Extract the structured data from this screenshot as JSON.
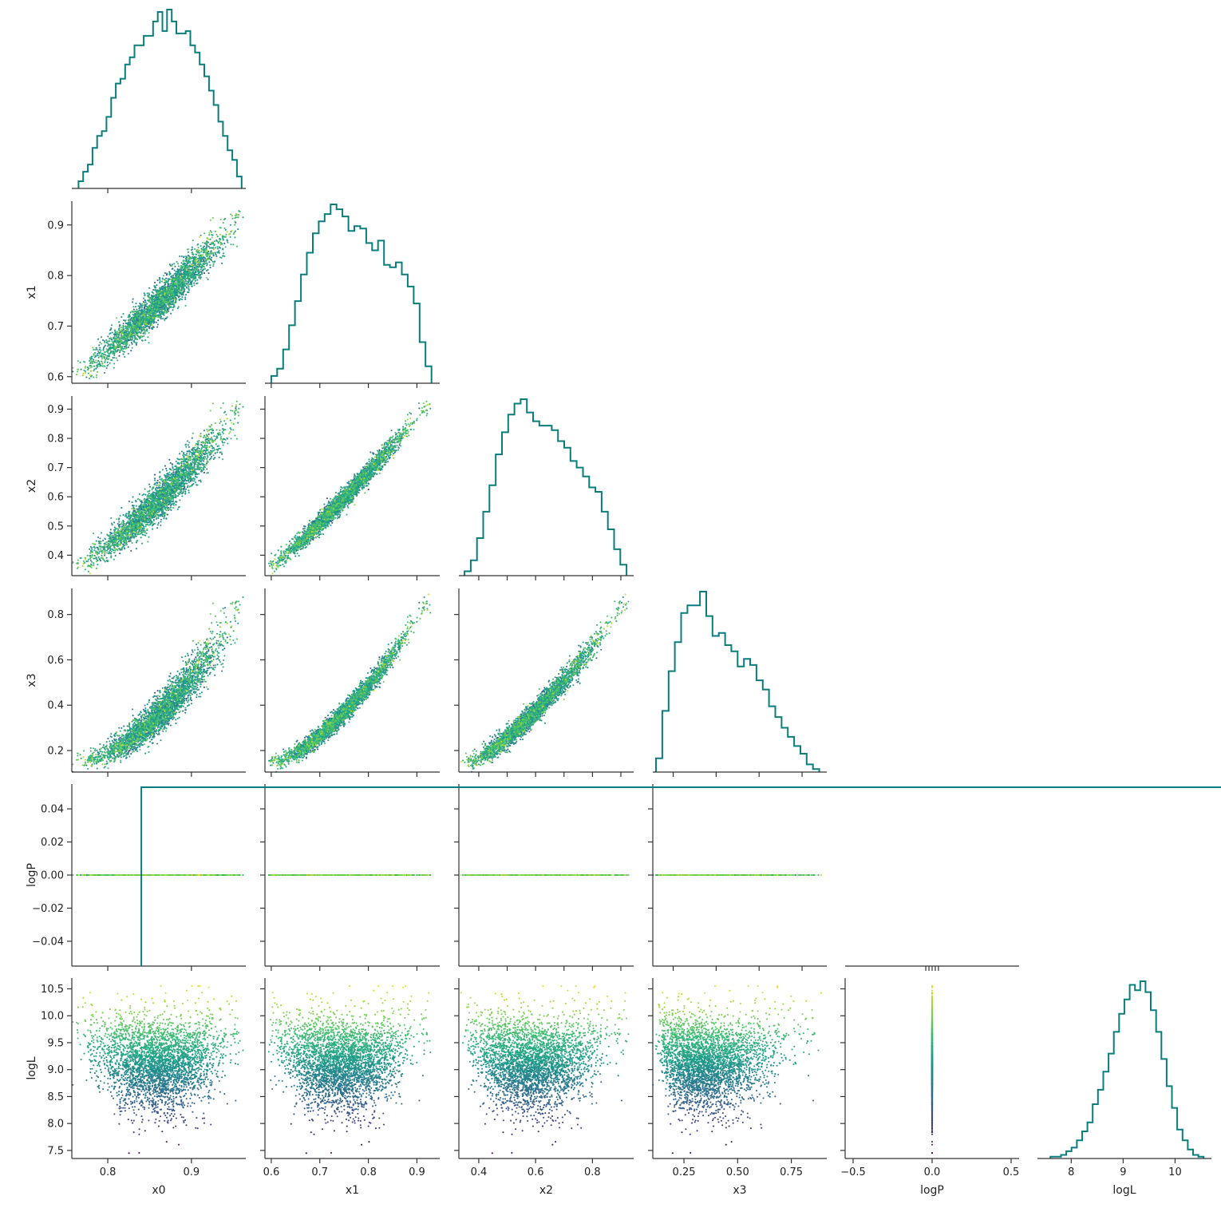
{
  "colors": {
    "hist": "#0a7d7d",
    "axis": "#333333",
    "viridis": [
      "#440154",
      "#482878",
      "#3e4989",
      "#31688e",
      "#26828e",
      "#1f9e89",
      "#35b779",
      "#6ece58",
      "#b5de2b",
      "#fde725"
    ]
  },
  "chart_data": {
    "type": "scatter",
    "kind": "corner-plot",
    "variables": [
      "x0",
      "x1",
      "x2",
      "x3",
      "logP",
      "logL"
    ],
    "ranges": {
      "x0": [
        0.757,
        0.965
      ],
      "x1": [
        0.587,
        0.947
      ],
      "x2": [
        0.33,
        0.945
      ],
      "x3": [
        0.105,
        0.915
      ],
      "logP": [
        -0.055,
        0.055
      ],
      "logL": [
        7.35,
        10.7
      ]
    },
    "ticks": {
      "x0": [
        0.8,
        0.9
      ],
      "x1": [
        0.6,
        0.7,
        0.8,
        0.9
      ],
      "x2": [
        0.4,
        0.5,
        0.6,
        0.7,
        0.8,
        0.9
      ],
      "x3": [
        0.2,
        0.4,
        0.6,
        0.8
      ],
      "logP": [
        -0.04,
        -0.02,
        0.0,
        0.02,
        0.04
      ],
      "logL": [
        7.5,
        8.0,
        8.5,
        9.0,
        9.5,
        10.0,
        10.5
      ]
    },
    "tick_labels": {
      "x0": [
        "0.8",
        "0.9"
      ],
      "x1": [
        "0.6",
        "0.7",
        "0.8",
        "0.9"
      ],
      "x2": [
        "0.4",
        "0.5",
        "0.6",
        "0.7",
        "0.8",
        "0.9"
      ],
      "x3": [
        "0.2",
        "0.4",
        "0.6",
        "0.8"
      ],
      "logP": [
        "0.04",
        "0.02",
        "0.00",
        "−0.02",
        "−0.04"
      ],
      "logL": [
        "10.5",
        "10.0",
        "9.5",
        "9.0",
        "8.5",
        "8.0",
        "7.5"
      ]
    },
    "bottom_ticks": {
      "x0": [
        0.8,
        0.9
      ],
      "x1": [
        0.6,
        0.7,
        0.8,
        0.9
      ],
      "x2": [
        0.4,
        0.6,
        0.8
      ],
      "x3": [
        0.25,
        0.5,
        0.75
      ],
      "logP": [
        -0.5,
        0.0,
        0.5
      ],
      "logL": [
        8,
        9,
        10
      ]
    },
    "bottom_tick_labels": {
      "x0": [
        "0.8",
        "0.9"
      ],
      "x1": [
        "0.6",
        "0.7",
        "0.8",
        "0.9"
      ],
      "x2": [
        "0.4",
        "0.6",
        "0.8"
      ],
      "x3": [
        "0.25",
        "0.50",
        "0.75"
      ],
      "logP": [
        "−0.5",
        "0.0",
        "0.5"
      ],
      "logL": [
        "8",
        "9",
        "10"
      ]
    },
    "xlabels": [
      "x0",
      "x1",
      "x2",
      "x3",
      "logP",
      "logL"
    ],
    "ylabels": [
      "x1",
      "x2",
      "x3",
      "logP",
      "logL"
    ],
    "colorbar": "none",
    "color_variable": "logL",
    "logP_value": 0.0,
    "histograms": {
      "x0": {
        "edges": [
          0.765,
          0.96
        ],
        "counts": [
          3,
          7,
          10,
          17,
          22,
          24,
          30,
          38,
          44,
          46,
          52,
          55,
          60,
          60,
          64,
          64,
          70,
          74,
          66,
          75,
          70,
          65,
          65,
          66,
          60,
          57,
          52,
          47,
          41,
          35,
          28,
          22,
          16,
          12,
          5
        ]
      },
      "x1": {
        "edges": [
          0.6,
          0.93
        ],
        "counts": [
          3,
          6,
          14,
          24,
          34,
          45,
          54,
          62,
          67,
          70,
          74,
          72,
          69,
          63,
          65,
          64,
          58,
          55,
          59,
          49,
          48,
          50,
          45,
          40,
          33,
          17,
          7
        ]
      },
      "x2": {
        "edges": [
          0.35,
          0.92
        ],
        "counts": [
          2,
          7,
          17,
          29,
          41,
          55,
          65,
          73,
          78,
          80,
          74,
          70,
          68,
          68,
          66,
          61,
          58,
          52,
          49,
          45,
          40,
          38,
          29,
          21,
          12,
          5
        ]
      },
      "x3": {
        "edges": [
          0.12,
          0.88
        ],
        "counts": [
          9,
          40,
          66,
          85,
          104,
          109,
          109,
          118,
          102,
          89,
          91,
          83,
          79,
          69,
          74,
          70,
          60,
          54,
          43,
          36,
          29,
          23,
          17,
          12,
          5,
          2
        ]
      },
      "logP": {
        "edges": [
          -0.5,
          0.5
        ],
        "counts": [
          1
        ]
      },
      "logL": {
        "edges": [
          7.6,
          10.55
        ],
        "counts": [
          1,
          1,
          2,
          4,
          6,
          10,
          15,
          20,
          30,
          38,
          48,
          58,
          70,
          80,
          88,
          96,
          93,
          98,
          92,
          82,
          70,
          55,
          40,
          28,
          16,
          10,
          5,
          2,
          1
        ]
      }
    }
  }
}
